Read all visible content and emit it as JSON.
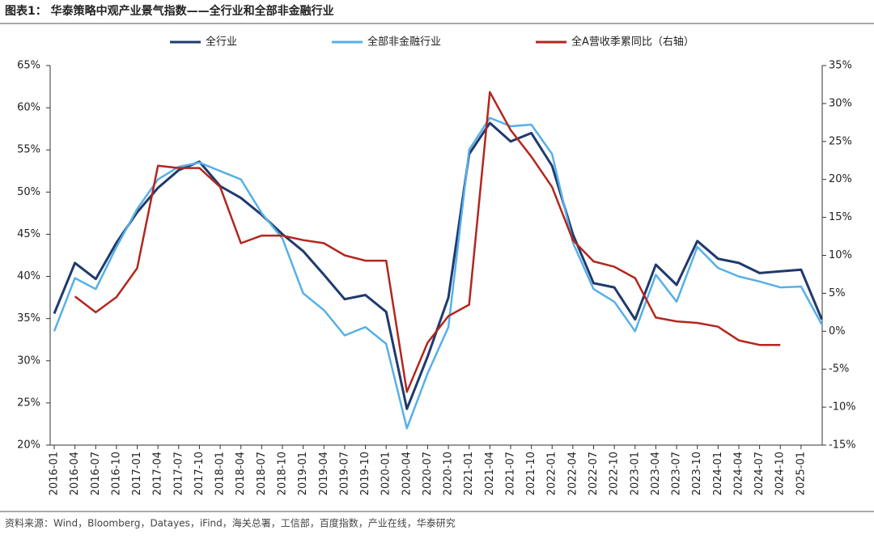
{
  "chart_data": {
    "type": "line",
    "title": "图表1：  华泰策略中观产业景气指数——全行业和全部非金融行业",
    "source": "资料来源：Wind，Bloomberg，Datayes，iFind，海关总署，工信部，百度指数，产业在线，华泰研究",
    "categories": [
      "2016-01",
      "2016-04",
      "2016-07",
      "2016-10",
      "2017-01",
      "2017-04",
      "2017-07",
      "2017-10",
      "2018-01",
      "2018-04",
      "2018-07",
      "2018-10",
      "2019-01",
      "2019-04",
      "2019-07",
      "2019-10",
      "2020-01",
      "2020-04",
      "2020-07",
      "2020-10",
      "2021-01",
      "2021-04",
      "2021-07",
      "2021-10",
      "2022-01",
      "2022-04",
      "2022-07",
      "2022-10",
      "2023-01",
      "2023-04",
      "2023-07",
      "2023-10",
      "2024-01",
      "2024-04",
      "2024-07",
      "2024-10",
      "2025-01",
      null
    ],
    "series": [
      {
        "name": "全行业",
        "color": "#1f3a6e",
        "values": [
          35.6,
          41.6,
          39.7,
          44,
          47.6,
          50.5,
          52.6,
          53.6,
          50.7,
          49.3,
          47.3,
          45,
          43,
          40.2,
          37.3,
          37.8,
          35.8,
          24.3,
          30.5,
          37.5,
          54.5,
          58.2,
          56,
          57,
          53.1,
          45,
          39.2,
          38.7,
          34.9,
          41.4,
          39,
          44.2,
          42.1,
          41.6,
          40.4,
          40.6,
          40.8,
          34.9
        ]
      },
      {
        "name": "全部非金融行业",
        "color": "#56b0e8",
        "values": [
          33.5,
          39.8,
          38.5,
          43.5,
          48,
          51.5,
          53,
          53.5,
          52.5,
          51.5,
          47.5,
          44.5,
          38,
          36,
          33,
          34,
          32,
          22,
          28.5,
          34,
          55,
          58.8,
          57.8,
          58,
          54.5,
          44,
          38.5,
          37,
          33.5,
          40.2,
          37,
          43.5,
          41,
          40,
          39.4,
          38.7,
          38.8,
          34.3
        ]
      },
      {
        "name": "全A营收季累同比（右轴）",
        "color": "#b3261e",
        "axis": "y2",
        "values": [
          null,
          4.6,
          2.5,
          4.5,
          8.3,
          21.8,
          21.5,
          21.5,
          19,
          11.6,
          12.6,
          12.6,
          12,
          11.6,
          10,
          9.3,
          9.3,
          -8,
          -1.5,
          2,
          3.5,
          31.5,
          26.5,
          23,
          19,
          12,
          9.2,
          8.5,
          7,
          1.8,
          1.3,
          1.1,
          0.6,
          -1.2,
          -1.8,
          -1.8,
          null,
          null
        ]
      }
    ],
    "ylim": [
      20,
      65
    ],
    "yticks": [
      {
        "value": 20,
        "label": "20%"
      },
      {
        "value": 25,
        "label": "25%"
      },
      {
        "value": 30,
        "label": "30%"
      },
      {
        "value": 35,
        "label": "35%"
      },
      {
        "value": 40,
        "label": "40%"
      },
      {
        "value": 45,
        "label": "45%"
      },
      {
        "value": 50,
        "label": "50%"
      },
      {
        "value": 55,
        "label": "55%"
      },
      {
        "value": 60,
        "label": "60%"
      },
      {
        "value": 65,
        "label": "65%"
      }
    ],
    "y2lim": [
      -15,
      35
    ],
    "y2ticks": [
      {
        "value": -15,
        "label": "-15%"
      },
      {
        "value": -10,
        "label": "-10%"
      },
      {
        "value": -5,
        "label": "-5%"
      },
      {
        "value": 0,
        "label": "0%"
      },
      {
        "value": 5,
        "label": "5%"
      },
      {
        "value": 10,
        "label": "10%"
      },
      {
        "value": 15,
        "label": "15%"
      },
      {
        "value": 20,
        "label": "20%"
      },
      {
        "value": 25,
        "label": "25%"
      },
      {
        "value": 30,
        "label": "30%"
      },
      {
        "value": 35,
        "label": "35%"
      }
    ]
  }
}
